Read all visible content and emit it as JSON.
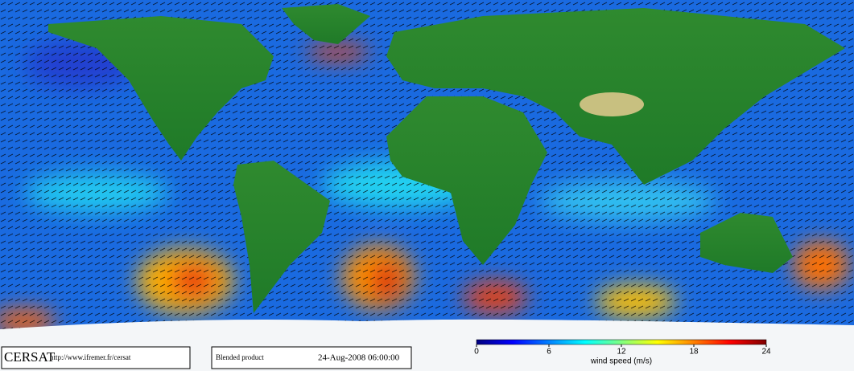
{
  "footer": {
    "logo": "CERSAT",
    "url": "http://www.ifremer.fr/cersat",
    "product": "Blended product",
    "date": "24-Aug-2008 06:00:00"
  },
  "colorbar": {
    "label": "wind speed (m/s)",
    "lim": [
      0,
      24
    ],
    "ticks": [
      0,
      6,
      12,
      18,
      24
    ],
    "colors": [
      "#00007f",
      "#0000ff",
      "#0080ff",
      "#00ffff",
      "#80ff80",
      "#ffff00",
      "#ff8000",
      "#ff0000",
      "#7f0000"
    ]
  }
}
